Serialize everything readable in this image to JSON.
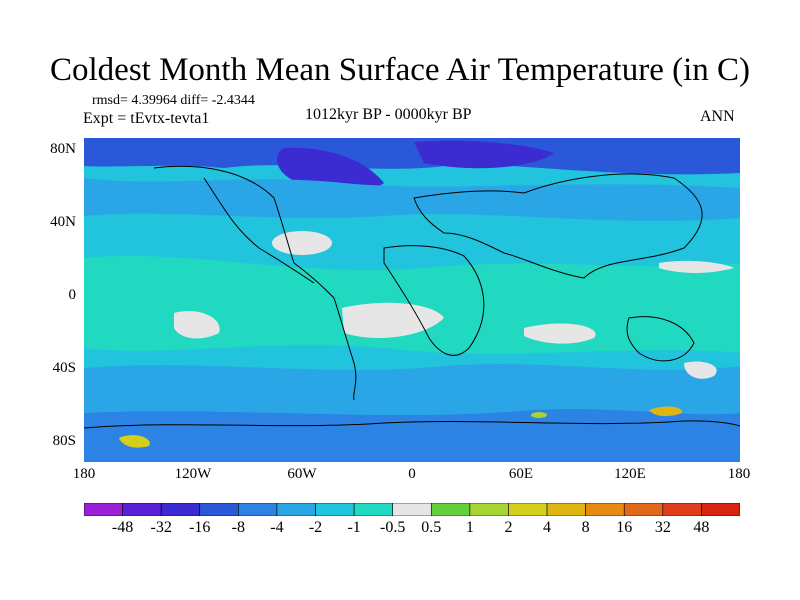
{
  "title": "Coldest Month Mean Surface Air Temperature (in C)",
  "stats": "rmsd= 4.39964 diff= -2.4344",
  "experiment": "Expt = tEvtx-tevta1",
  "period": "1012kyr BP - 0000kyr BP",
  "season": "ANN",
  "y_axis_labels": [
    "80N",
    "40N",
    "0",
    "40S",
    "80S"
  ],
  "x_axis_labels": [
    "180",
    "120W",
    "60W",
    "0",
    "60E",
    "120E",
    "180"
  ],
  "colorbar": {
    "labels": [
      "-48",
      "-32",
      "-16",
      "-8",
      "-4",
      "-2",
      "-1",
      "-0.5",
      "0.5",
      "1",
      "2",
      "4",
      "8",
      "16",
      "32",
      "48"
    ],
    "colors": [
      "#9b1fd6",
      "#5a1fd6",
      "#3b2bd0",
      "#2a58d8",
      "#2d83e3",
      "#2aa6e6",
      "#22c3dc",
      "#21d8c0",
      "#e6e6e6",
      "#63cf3a",
      "#a6d433",
      "#d4cf1c",
      "#e0b412",
      "#e38b13",
      "#e2681c",
      "#de3f1a",
      "#d7260f"
    ]
  }
}
